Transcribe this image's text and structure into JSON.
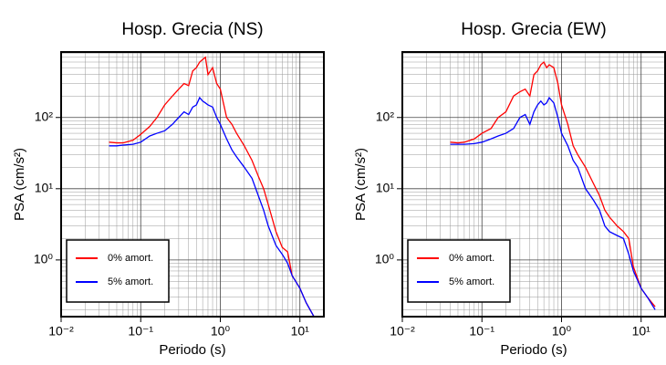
{
  "chart_data": [
    {
      "type": "line",
      "title": "Hosp. Grecia (NS)",
      "xlabel": "Periodo (s)",
      "ylabel": "PSA (cm/s²)",
      "xscale": "log",
      "yscale": "log",
      "grid": true,
      "legend": "lower left",
      "xlim": [
        0.01,
        20
      ],
      "ylim": [
        0.16,
        830
      ],
      "xticks": [
        {
          "value": 0.01,
          "label": "10⁻²"
        },
        {
          "value": 0.1,
          "label": "10⁻¹"
        },
        {
          "value": 1,
          "label": "10⁰"
        },
        {
          "value": 10,
          "label": "10¹"
        }
      ],
      "yticks": [
        {
          "value": 1,
          "label": "10⁰"
        },
        {
          "value": 10,
          "label": "10¹"
        },
        {
          "value": 100,
          "label": "10²"
        }
      ],
      "x": [
        0.04,
        0.05,
        0.06,
        0.08,
        0.1,
        0.13,
        0.16,
        0.2,
        0.25,
        0.3,
        0.35,
        0.4,
        0.45,
        0.5,
        0.55,
        0.6,
        0.65,
        0.7,
        0.8,
        0.9,
        1.0,
        1.2,
        1.4,
        1.6,
        2,
        2.5,
        3,
        3.5,
        4,
        5,
        6,
        7,
        8,
        10,
        12,
        15
      ],
      "series": [
        {
          "name": "0% amort.",
          "color": "#ff0000",
          "values": [
            45,
            44,
            44,
            48,
            58,
            75,
            100,
            150,
            200,
            250,
            300,
            280,
            450,
            500,
            600,
            650,
            700,
            400,
            500,
            300,
            250,
            100,
            80,
            60,
            40,
            25,
            15,
            10,
            6,
            2.5,
            1.5,
            1.3,
            0.6,
            0.4,
            0.25,
            0.16
          ]
        },
        {
          "name": "5% amort.",
          "color": "#0000ff",
          "values": [
            40,
            40,
            41,
            42,
            45,
            55,
            60,
            65,
            80,
            100,
            120,
            110,
            140,
            150,
            190,
            170,
            160,
            150,
            140,
            100,
            80,
            50,
            35,
            28,
            20,
            14,
            8,
            5,
            3,
            1.6,
            1.2,
            0.9,
            0.6,
            0.4,
            0.25,
            0.16
          ]
        }
      ]
    },
    {
      "type": "line",
      "title": "Hosp. Grecia (EW)",
      "xlabel": "Periodo (s)",
      "ylabel": "PSA (cm/s²)",
      "xscale": "log",
      "yscale": "log",
      "grid": true,
      "legend": "lower left",
      "xlim": [
        0.01,
        20
      ],
      "ylim": [
        0.16,
        830
      ],
      "xticks": [
        {
          "value": 0.01,
          "label": "10⁻²"
        },
        {
          "value": 0.1,
          "label": "10⁻¹"
        },
        {
          "value": 1,
          "label": "10⁰"
        },
        {
          "value": 10,
          "label": "10¹"
        }
      ],
      "yticks": [
        {
          "value": 1,
          "label": "10⁰"
        },
        {
          "value": 10,
          "label": "10¹"
        },
        {
          "value": 100,
          "label": "10²"
        }
      ],
      "x": [
        0.04,
        0.05,
        0.06,
        0.08,
        0.1,
        0.13,
        0.16,
        0.2,
        0.25,
        0.3,
        0.35,
        0.4,
        0.45,
        0.5,
        0.55,
        0.6,
        0.65,
        0.7,
        0.8,
        0.9,
        1.0,
        1.2,
        1.4,
        1.6,
        2,
        2.5,
        3,
        3.5,
        4,
        5,
        6,
        7,
        8,
        10,
        12,
        15
      ],
      "series": [
        {
          "name": "0% amort.",
          "color": "#ff0000",
          "values": [
            45,
            44,
            45,
            50,
            60,
            70,
            100,
            120,
            200,
            230,
            250,
            200,
            400,
            450,
            550,
            600,
            500,
            550,
            500,
            300,
            150,
            80,
            40,
            30,
            20,
            12,
            8,
            5,
            4,
            3,
            2.5,
            2,
            0.8,
            0.4,
            0.3,
            0.22
          ]
        },
        {
          "name": "5% amort.",
          "color": "#0000ff",
          "values": [
            42,
            42,
            42,
            43,
            45,
            50,
            55,
            60,
            70,
            100,
            110,
            80,
            120,
            150,
            170,
            150,
            160,
            190,
            160,
            100,
            60,
            40,
            25,
            20,
            10,
            7,
            5,
            3,
            2.5,
            2.2,
            2,
            1.2,
            0.7,
            0.4,
            0.3,
            0.2
          ]
        }
      ]
    }
  ]
}
